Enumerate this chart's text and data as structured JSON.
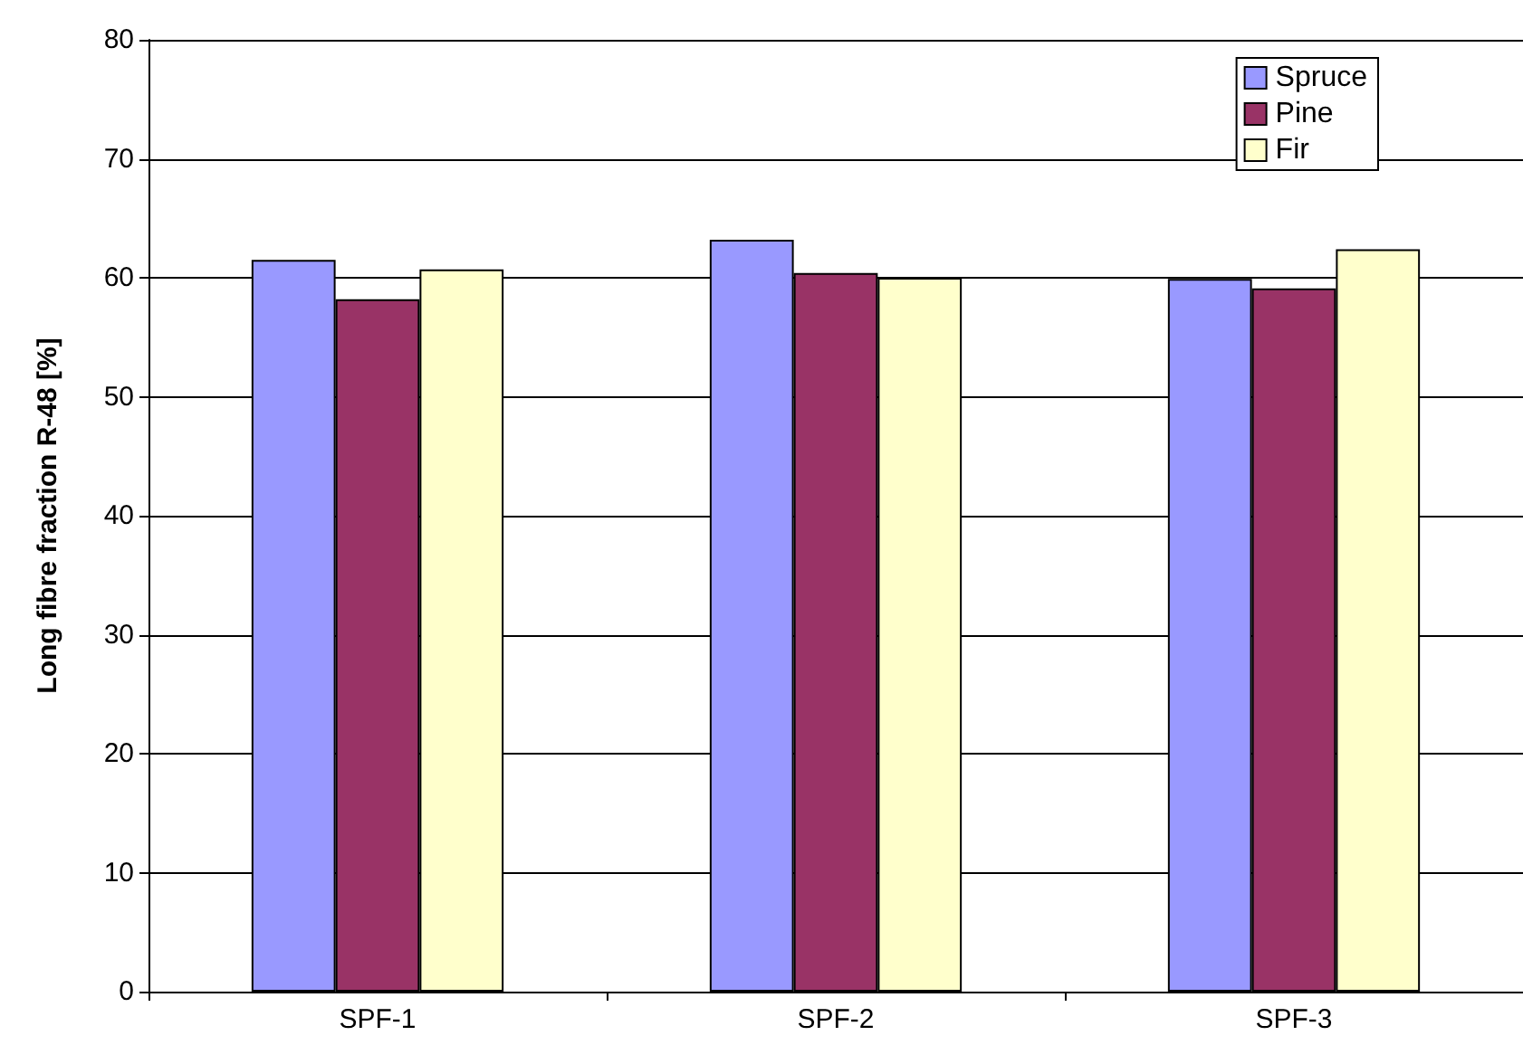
{
  "chart_data": {
    "type": "bar",
    "ylabel": "Long fibre fraction R-48 [%]",
    "categories": [
      "SPF-1",
      "SPF-2",
      "SPF-3"
    ],
    "series": [
      {
        "name": "Spruce",
        "color": "#9999ff",
        "values": [
          61.5,
          63.2,
          59.9
        ]
      },
      {
        "name": "Pine",
        "color": "#993366",
        "values": [
          58.2,
          60.4,
          59.1
        ]
      },
      {
        "name": "Fir",
        "color": "#ffffcc",
        "values": [
          60.7,
          60.0,
          62.4
        ]
      }
    ],
    "ylim": [
      0,
      80
    ],
    "yticks": [
      0,
      10,
      20,
      30,
      40,
      50,
      60,
      70,
      80
    ],
    "grid": "y",
    "legend": "top right"
  }
}
